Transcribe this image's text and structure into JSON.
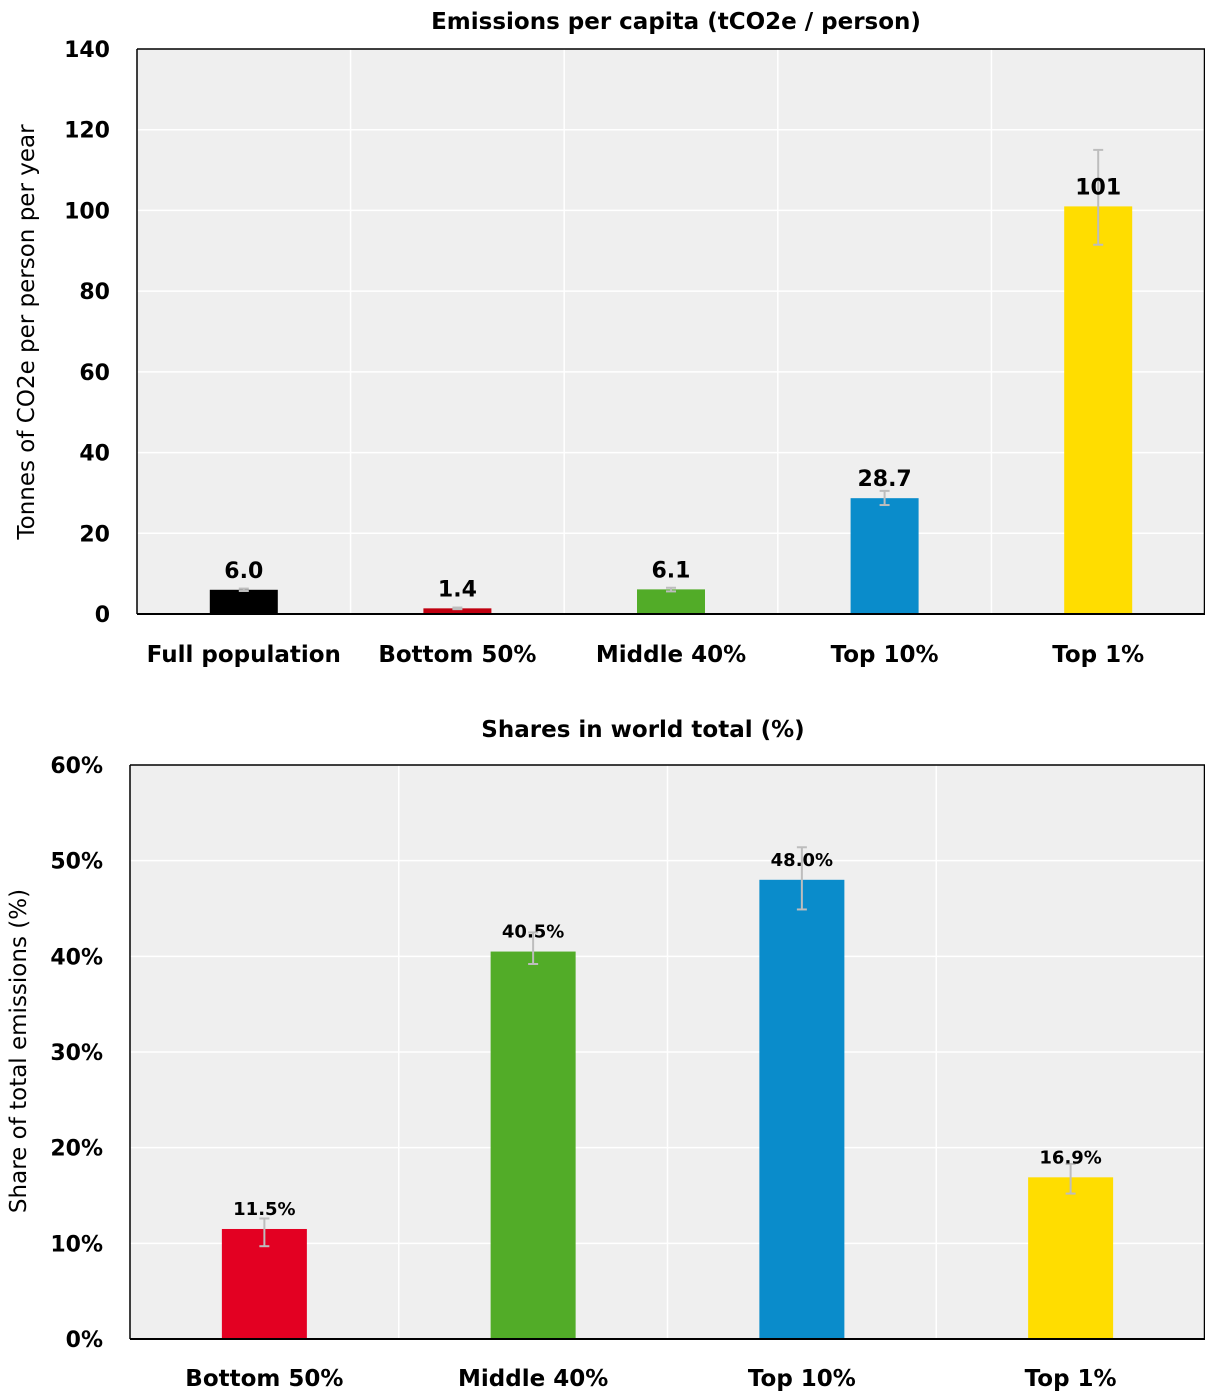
{
  "chart_data": [
    {
      "type": "bar",
      "title": "Emissions per capita (tCO2e / person)",
      "ylabel": "Tonnes of CO2e per person per year",
      "xlabel": "",
      "ylim": [
        0,
        140
      ],
      "yticks": [
        0,
        20,
        40,
        60,
        80,
        100,
        120,
        140
      ],
      "ytick_labels": [
        "0",
        "20",
        "40",
        "60",
        "80",
        "100",
        "120",
        "140"
      ],
      "grid": true,
      "categories": [
        "Full population",
        "Bottom 50%",
        "Middle 40%",
        "Top 10%",
        "Top 1%"
      ],
      "values": [
        6.0,
        1.4,
        6.1,
        28.7,
        101
      ],
      "data_labels": [
        "6.0",
        "1.4",
        "6.1",
        "28.7",
        "101"
      ],
      "error_low": [
        5.7,
        1.2,
        5.6,
        27.0,
        91.5
      ],
      "error_high": [
        6.3,
        1.6,
        6.5,
        30.5,
        115.0
      ],
      "colors": [
        "#000000",
        "#c00010",
        "#52ac28",
        "#0a8ccb",
        "#ffdd00"
      ]
    },
    {
      "type": "bar",
      "title": "Shares in world total (%)",
      "ylabel": "Share of total emissions (%)",
      "xlabel": "",
      "ylim": [
        0,
        60
      ],
      "yticks": [
        0,
        10,
        20,
        30,
        40,
        50,
        60
      ],
      "ytick_labels": [
        "0%",
        "10%",
        "20%",
        "30%",
        "40%",
        "50%",
        "60%"
      ],
      "grid": true,
      "categories": [
        "Bottom 50%",
        "Middle 40%",
        "Top 10%",
        "Top 1%"
      ],
      "values": [
        11.5,
        40.5,
        48.0,
        16.9
      ],
      "data_labels": [
        "11.5%",
        "40.5%",
        "48.0%",
        "16.9%"
      ],
      "error_low": [
        9.7,
        39.2,
        44.9,
        15.2
      ],
      "error_high": [
        12.6,
        42.5,
        51.4,
        18.3
      ],
      "colors": [
        "#e30022",
        "#52ac28",
        "#0a8ccb",
        "#ffdd00"
      ]
    }
  ]
}
